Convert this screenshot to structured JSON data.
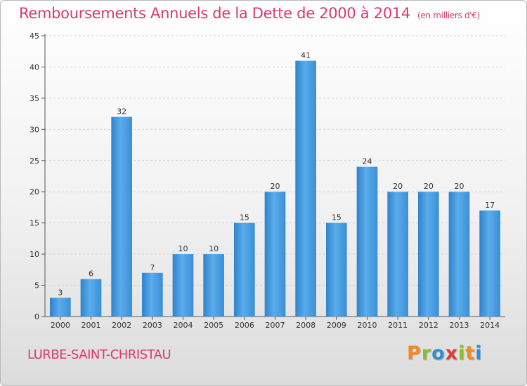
{
  "header": {
    "title": "Remboursements Annuels de la Dette de 2000 à 2014",
    "unit": "(en milliers d'€)"
  },
  "footer": {
    "commune": "LURBE-SAINT-CHRISTAU",
    "logo_letters": [
      "P",
      "r",
      "o",
      "x",
      "i",
      "t",
      "i"
    ],
    "logo_colors": [
      "#f08c1f",
      "#8bbd2a",
      "#2f8fd1",
      "#e23b3b",
      "#8bbd2a",
      "#f08c1f",
      "#2f8fd1"
    ]
  },
  "chart_data": {
    "type": "bar",
    "title": "Remboursements Annuels de la Dette de 2000 à 2014",
    "subtitle": "(en milliers d'€)",
    "xlabel": "",
    "ylabel": "",
    "categories": [
      "2000",
      "2001",
      "2002",
      "2003",
      "2004",
      "2005",
      "2006",
      "2007",
      "2008",
      "2009",
      "2010",
      "2011",
      "2012",
      "2013",
      "2014"
    ],
    "values": [
      3,
      6,
      32,
      7,
      10,
      10,
      15,
      20,
      41,
      15,
      24,
      20,
      20,
      20,
      17
    ],
    "ylim": [
      0,
      45
    ],
    "yticks": [
      0,
      5,
      10,
      15,
      20,
      25,
      30,
      35,
      40,
      45
    ],
    "grid": true,
    "bar_color": "#4a9fe0",
    "bar_color_dark": "#2e7fc6"
  }
}
